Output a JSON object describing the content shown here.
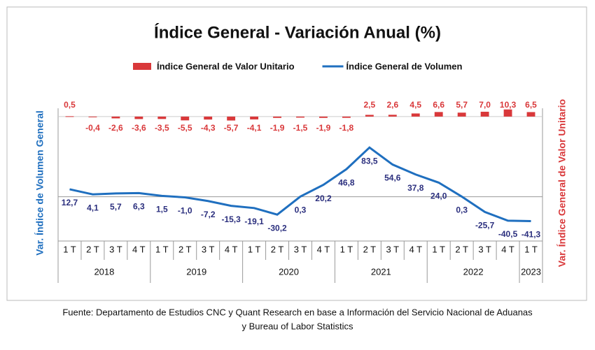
{
  "chart_data": {
    "type": "bar-line",
    "title": "Índice General - Variación Anual (%)",
    "source": [
      "Fuente: Departamento de Estudios CNC y Quant Research en base a Información del Servicio Nacional de Aduanas",
      "y Bureau of Labor Statistics"
    ],
    "ylabel": "Var. Índice de Volumen General",
    "y2label": "Var. Índice General de Valor Unitario",
    "categories": [
      "1 T",
      "2 T",
      "3 T",
      "4 T",
      "1 T",
      "2 T",
      "3 T",
      "4 T",
      "1 T",
      "2 T",
      "3 T",
      "4 T",
      "1 T",
      "2 T",
      "3 T",
      "4 T",
      "1 T",
      "2 T",
      "3 T",
      "4 T",
      "1 T"
    ],
    "x_groups": [
      "2018",
      null,
      null,
      null,
      "2019",
      null,
      null,
      null,
      "2020",
      null,
      null,
      null,
      "2021",
      null,
      null,
      null,
      "2022",
      null,
      null,
      null,
      "2023"
    ],
    "ylim": [
      -75,
      150
    ],
    "y2lim": [
      -180,
      12
    ],
    "series": [
      {
        "name": "Índice General de Valor Unitario",
        "type": "bar",
        "axis": "y2",
        "color": "#d9383a",
        "values": [
          0.5,
          -0.4,
          -2.6,
          -3.6,
          -3.5,
          -5.5,
          -4.3,
          -5.7,
          -4.1,
          -1.9,
          -1.5,
          -1.9,
          -1.8,
          2.5,
          2.6,
          4.5,
          6.6,
          5.7,
          7.0,
          10.3,
          6.5
        ],
        "value_labels": [
          "0,5",
          "-0,4",
          "-2,6",
          "-3,6",
          "-3,5",
          "-5,5",
          "-4,3",
          "-5,7",
          "-4,1",
          "-1,9",
          "-1,5",
          "-1,9",
          "-1,8",
          "2,5",
          "2,6",
          "4,5",
          "6,6",
          "5,7",
          "7,0",
          "10,3",
          "6,5"
        ]
      },
      {
        "name": "Índice General de Volumen",
        "type": "line",
        "axis": "y",
        "color": "#1f6fbf",
        "label_color": "#2b2f7e",
        "values": [
          12.7,
          4.1,
          5.7,
          6.3,
          1.5,
          -1.0,
          -7.2,
          -15.3,
          -19.1,
          -30.2,
          0.3,
          20.2,
          46.8,
          83.5,
          54.6,
          37.8,
          24.0,
          0.3,
          -25.7,
          -40.5,
          -41.3
        ],
        "value_labels": [
          "12,7",
          "4,1",
          "5,7",
          "6,3",
          "1,5",
          "-1,0",
          "-7,2",
          "-15,3",
          "-19,1",
          "-30,2",
          "0,3",
          "20,2",
          "46,8",
          "83,5",
          "54,6",
          "37,8",
          "24,0",
          "0,3",
          "-25,7",
          "-40,5",
          "-41,3"
        ]
      }
    ]
  }
}
